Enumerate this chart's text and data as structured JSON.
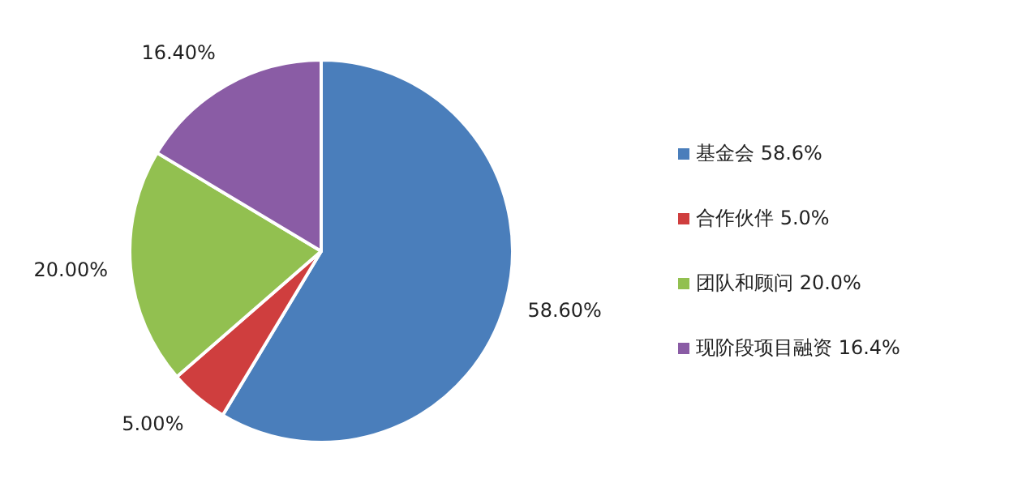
{
  "chart_data": {
    "type": "pie",
    "categories": [
      "基金会 58.6%",
      "合作伙伴 5.0%",
      "团队和顾问 20.0%",
      "现阶段项目融资 16.4%"
    ],
    "values": [
      58.6,
      5.0,
      20.0,
      16.4
    ],
    "colors": [
      "#4a7ebb",
      "#cf3e3e",
      "#92c050",
      "#8a5ca5"
    ],
    "value_labels": [
      "58.60%",
      "5.00%",
      "20.00%",
      "16.40%"
    ],
    "legend": "right"
  }
}
